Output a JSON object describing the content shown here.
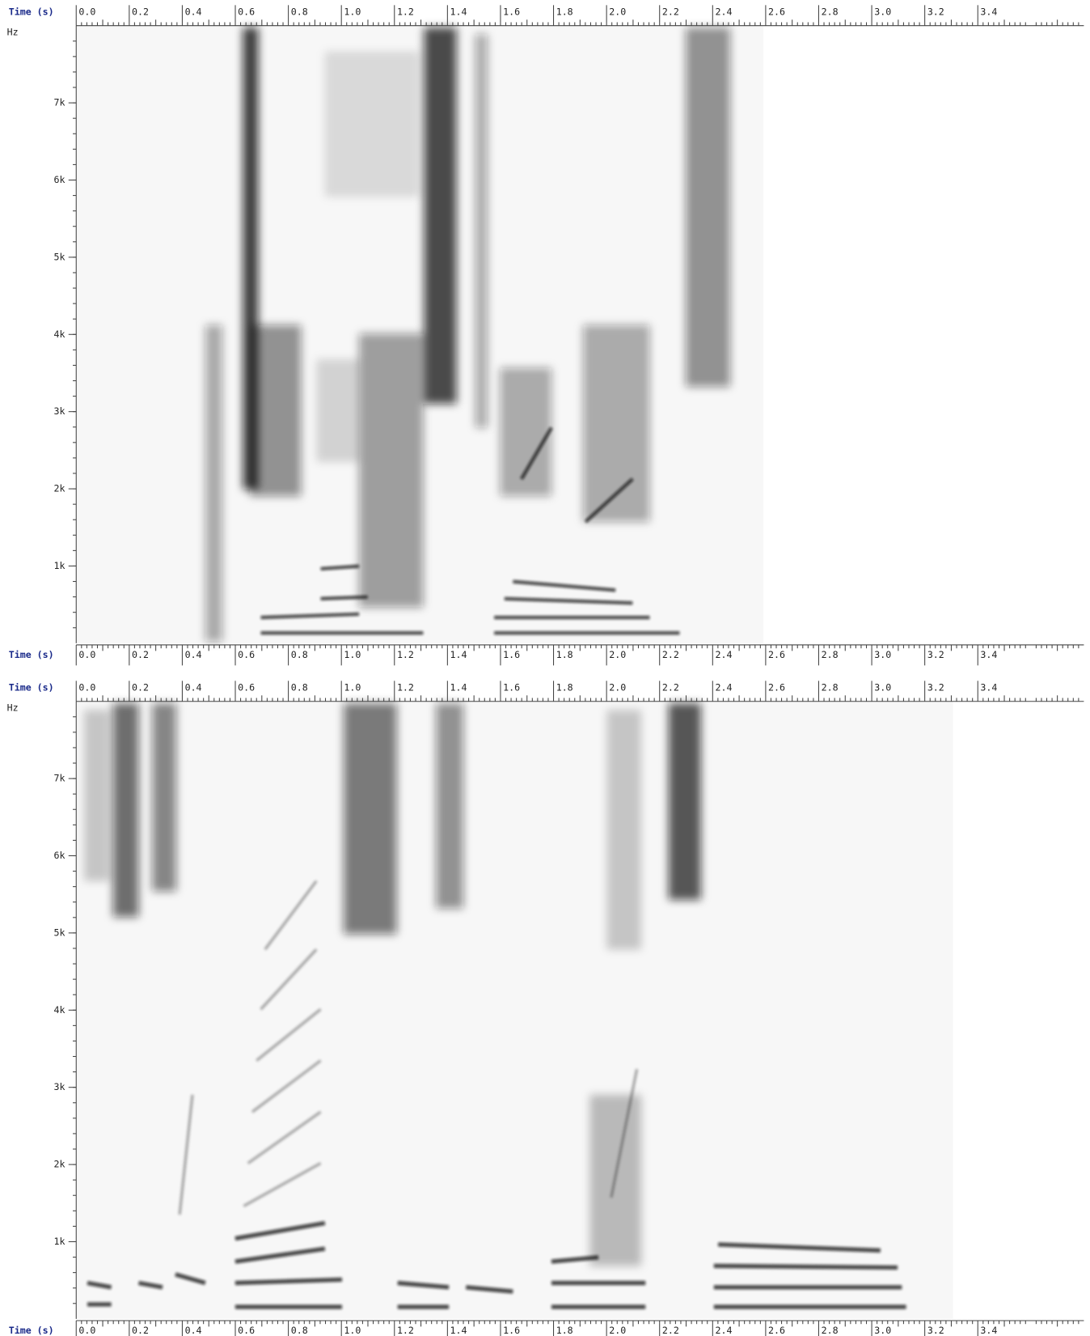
{
  "chart_data": [
    {
      "type": "spectrogram",
      "xlabel": "Time (s)",
      "ylabel": "Hz",
      "xlim": [
        0,
        3.8
      ],
      "xticks": [
        {
          "value": 0,
          "label": "0.0"
        },
        0.2,
        0.4,
        0.6,
        0.8,
        {
          "value": 1,
          "label": "1.0"
        },
        1.2,
        1.4,
        1.6,
        1.8,
        {
          "value": 2,
          "label": "2.0"
        },
        2.2,
        2.4,
        2.6,
        2.8,
        {
          "value": 3,
          "label": "3.0"
        },
        3.2,
        3.4
      ],
      "ylim": [
        0,
        8000
      ],
      "yticks": [
        {
          "value": 1000,
          "label": "1k"
        },
        {
          "value": 2000,
          "label": "2k"
        },
        {
          "value": 3000,
          "label": "3k"
        },
        {
          "value": 4000,
          "label": "4k"
        },
        {
          "value": 5000,
          "label": "5k"
        },
        {
          "value": 6000,
          "label": "6k"
        },
        {
          "value": 7000,
          "label": "7k"
        }
      ]
    },
    {
      "type": "spectrogram",
      "xlabel": "Time (s)",
      "ylabel": "Hz",
      "xlim": [
        0,
        3.8
      ],
      "xticks": [
        {
          "value": 0,
          "label": "0.0"
        },
        0.2,
        0.4,
        0.6,
        0.8,
        {
          "value": 1,
          "label": "1.0"
        },
        1.2,
        1.4,
        1.6,
        1.8,
        {
          "value": 2,
          "label": "2.0"
        },
        2.2,
        2.4,
        2.6,
        2.8,
        {
          "value": 3,
          "label": "3.0"
        },
        3.2,
        3.4
      ],
      "ylim": [
        0,
        8000
      ],
      "yticks": [
        {
          "value": 1000,
          "label": "1k"
        },
        {
          "value": 2000,
          "label": "2k"
        },
        {
          "value": 3000,
          "label": "3k"
        },
        {
          "value": 4000,
          "label": "4k"
        },
        {
          "value": 5000,
          "label": "5k"
        },
        {
          "value": 6000,
          "label": "6k"
        },
        {
          "value": 7000,
          "label": "7k"
        }
      ]
    }
  ]
}
